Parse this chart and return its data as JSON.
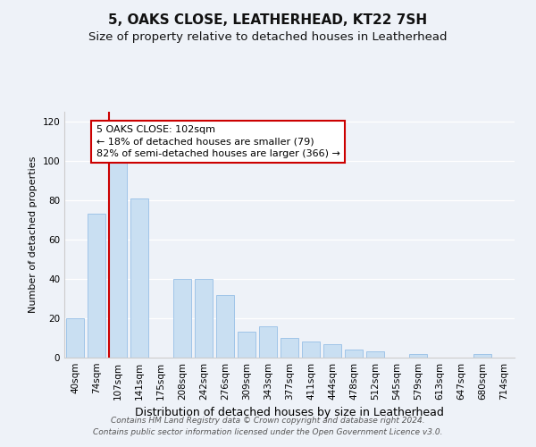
{
  "title": "5, OAKS CLOSE, LEATHERHEAD, KT22 7SH",
  "subtitle": "Size of property relative to detached houses in Leatherhead",
  "xlabel": "Distribution of detached houses by size in Leatherhead",
  "ylabel": "Number of detached properties",
  "bar_labels": [
    "40sqm",
    "74sqm",
    "107sqm",
    "141sqm",
    "175sqm",
    "208sqm",
    "242sqm",
    "276sqm",
    "309sqm",
    "343sqm",
    "377sqm",
    "411sqm",
    "444sqm",
    "478sqm",
    "512sqm",
    "545sqm",
    "579sqm",
    "613sqm",
    "647sqm",
    "680sqm",
    "714sqm"
  ],
  "bar_values": [
    20,
    73,
    101,
    81,
    0,
    40,
    40,
    32,
    13,
    16,
    10,
    8,
    7,
    4,
    3,
    0,
    2,
    0,
    0,
    2,
    0
  ],
  "bar_color": "#c9dff2",
  "bar_edge_color": "#a0c4e8",
  "vline_x_index": 2,
  "vline_color": "#cc0000",
  "annotation_text": "5 OAKS CLOSE: 102sqm\n← 18% of detached houses are smaller (79)\n82% of semi-detached houses are larger (366) →",
  "annotation_box_color": "#ffffff",
  "annotation_box_edge": "#cc0000",
  "ylim": [
    0,
    125
  ],
  "yticks": [
    0,
    20,
    40,
    60,
    80,
    100,
    120
  ],
  "footer_line1": "Contains HM Land Registry data © Crown copyright and database right 2024.",
  "footer_line2": "Contains public sector information licensed under the Open Government Licence v3.0.",
  "background_color": "#eef2f8",
  "title_fontsize": 11,
  "subtitle_fontsize": 9.5,
  "xlabel_fontsize": 9,
  "ylabel_fontsize": 8,
  "tick_fontsize": 7.5,
  "annotation_fontsize": 8,
  "footer_fontsize": 6.5
}
